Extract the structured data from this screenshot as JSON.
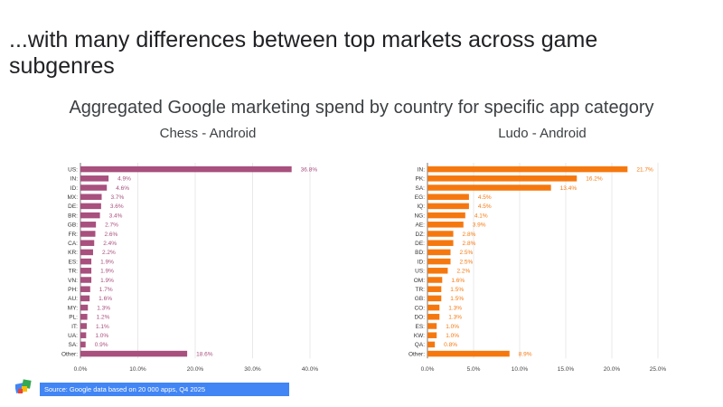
{
  "slide": {
    "title": "...with many differences between top markets across game subgenres",
    "chart_heading": "Aggregated Google marketing spend by country for specific app category",
    "source": "Source: Google data based on 20 000 apps, Q4 2025"
  },
  "colors": {
    "chess_bar": "#a8507e",
    "ludo_bar": "#f5780f",
    "source_bar": "#4285f4"
  },
  "chart_data": [
    {
      "type": "bar",
      "orientation": "horizontal",
      "title": "Chess - Android",
      "categories": [
        "US:",
        "IN:",
        "ID:",
        "MX:",
        "DE:",
        "BR:",
        "GB:",
        "FR:",
        "CA:",
        "KR:",
        "ES:",
        "TR:",
        "VN:",
        "PH:",
        "AU:",
        "MY:",
        "PL:",
        "IT:",
        "UA:",
        "SA:",
        "Other:"
      ],
      "values": [
        36.8,
        4.9,
        4.6,
        3.7,
        3.6,
        3.4,
        2.7,
        2.6,
        2.4,
        2.2,
        1.9,
        1.9,
        1.9,
        1.7,
        1.6,
        1.3,
        1.2,
        1.1,
        1.0,
        0.9,
        18.6
      ],
      "value_labels": [
        "36.8%",
        "4.9%",
        "4.6%",
        "3.7%",
        "3.6%",
        "3.4%",
        "2.7%",
        "2.6%",
        "2.4%",
        "2.2%",
        "1.9%",
        "1.9%",
        "1.9%",
        "1.7%",
        "1.6%",
        "1.3%",
        "1.2%",
        "1.1%",
        "1.0%",
        "0.9%",
        "18.6%"
      ],
      "xlim": [
        0,
        40
      ],
      "xticks": [
        0,
        10,
        20,
        30,
        40
      ],
      "xtick_labels": [
        "0.0%",
        "10.0%",
        "20.0%",
        "30.0%",
        "40.0%"
      ],
      "grid": true,
      "color": "#a8507e"
    },
    {
      "type": "bar",
      "orientation": "horizontal",
      "title": "Ludo - Android",
      "categories": [
        "IN:",
        "PK:",
        "SA:",
        "EG:",
        "IQ:",
        "NG:",
        "AE:",
        "DZ:",
        "DE:",
        "BD:",
        "ID:",
        "US:",
        "OM:",
        "TR:",
        "GB:",
        "CO:",
        "DO:",
        "ES:",
        "KW:",
        "QA:",
        "Other:"
      ],
      "values": [
        21.7,
        16.2,
        13.4,
        4.5,
        4.5,
        4.1,
        3.9,
        2.8,
        2.8,
        2.5,
        2.5,
        2.2,
        1.6,
        1.5,
        1.5,
        1.3,
        1.3,
        1.0,
        1.0,
        0.8,
        8.9
      ],
      "value_labels": [
        "21.7%",
        "16.2%",
        "13.4%",
        "4.5%",
        "4.5%",
        "4.1%",
        "3.9%",
        "2.8%",
        "2.8%",
        "2.5%",
        "2.5%",
        "2.2%",
        "1.6%",
        "1.5%",
        "1.5%",
        "1.3%",
        "1.3%",
        "1.0%",
        "1.0%",
        "0.8%",
        "8.9%"
      ],
      "xlim": [
        0,
        25
      ],
      "xticks": [
        0,
        5,
        10,
        15,
        20,
        25
      ],
      "xtick_labels": [
        "0.0%",
        "5.0%",
        "10.0%",
        "15.0%",
        "20.0%",
        "25.0%"
      ],
      "grid": true,
      "color": "#f5780f"
    }
  ]
}
